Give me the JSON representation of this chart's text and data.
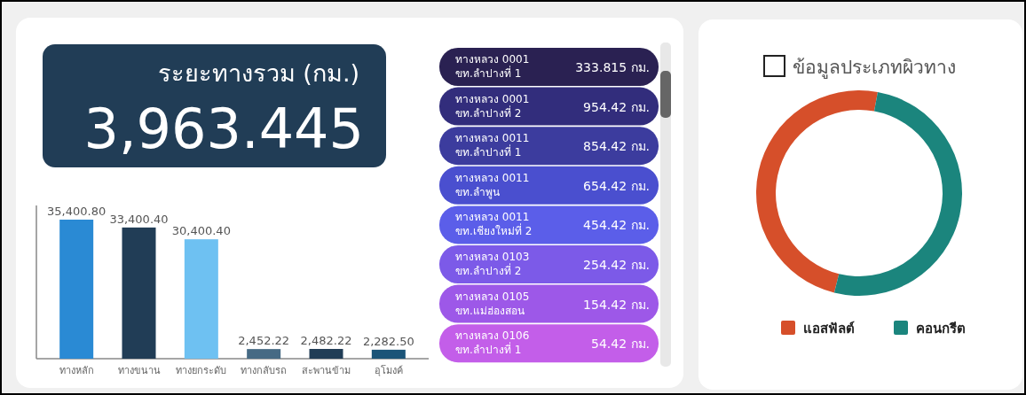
{
  "chart_data": [
    {
      "type": "other",
      "title": "ระยะทางรวม (กม.)",
      "annotations": [
        "3,963.445"
      ]
    },
    {
      "type": "bar",
      "categories": [
        "ทางหลัก",
        "ทางขนาน",
        "ทางยกระดับ",
        "ทางกลับรถ",
        "สะพานข้าม",
        "อุโมงค์"
      ],
      "values": [
        35400.8,
        33400.4,
        30400.4,
        2452.22,
        2482.22,
        2282.5
      ],
      "value_labels": [
        "35,400.80",
        "33,400.40",
        "30,400.40",
        "2,452.22",
        "2,482.22",
        "2,282.50"
      ],
      "colors": [
        "#2a8ad4",
        "#213d56",
        "#6ec1f2",
        "#466a84",
        "#213d56",
        "#1b5478"
      ]
    },
    {
      "type": "other",
      "categories": [
        "ทางหลวง 0001\nขท.ลำปางที่ 1",
        "ทางหลวง 0001\nขท.ลำปางที่ 2",
        "ทางหลวง 0011\nขท.ลำปางที่ 1",
        "ทางหลวง 0011\nขท.ลำพูน",
        "ทางหลวง 0011\nขท.เชียงใหม่ที่ 2",
        "ทางหลวง 0103\nขท.ลำปางที่ 2",
        "ทางหลวง 0105\nขท.แม่ฮ่องสอน",
        "ทางหลวง 0106\nขท.ลำปางที่ 1"
      ],
      "value_labels": [
        "333.815 กม.",
        "954.42 กม.",
        "854.42 กม.",
        "654.42 กม.",
        "454.42 กม.",
        "254.42 กม.",
        "154.42 กม.",
        "54.42 กม."
      ],
      "colors": [
        "#2a2152",
        "#322d7c",
        "#3c3c9e",
        "#4a4fcf",
        "#5b5ee9",
        "#7c5ae8",
        "#9d58e8",
        "#c35ee9"
      ]
    },
    {
      "type": "donut",
      "title": "ข้อมูลประเภทผิวทาง",
      "categories": [
        "แอสฟัลต์",
        "คอนกรีต"
      ],
      "values": [
        49,
        51
      ],
      "colors": [
        "#d64f2a",
        "#1b857d"
      ],
      "legend": "bottom"
    }
  ]
}
